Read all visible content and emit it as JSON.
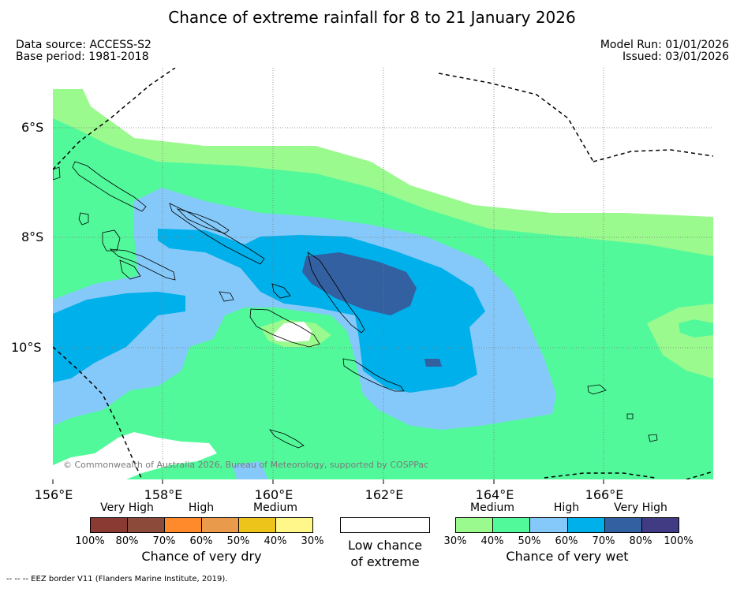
{
  "title": "Chance of extreme rainfall for 8 to 21 January 2026",
  "meta": {
    "data_source": "Data source: ACCESS-S2",
    "base_period": "Base period: 1981-2018",
    "model_run": "Model Run: 01/01/2026",
    "issued": "Issued: 03/01/2026"
  },
  "axes": {
    "lon_labels": [
      "156°E",
      "158°E",
      "160°E",
      "162°E",
      "164°E",
      "166°E"
    ],
    "lat_labels": [
      "6°S",
      "8°S",
      "10°S"
    ]
  },
  "copyright": "© Commonwealth of Australia 2026, Bureau of Meteorology, supported by COSPPac",
  "legend": {
    "dry": {
      "levels": [
        "Very High",
        "High",
        "Medium"
      ],
      "ticks": [
        "100%",
        "80%",
        "70%",
        "60%",
        "50%",
        "40%",
        "30%"
      ],
      "colors": [
        "#8b3a33",
        "#8b4a3a",
        "#ff8a2b",
        "#e99a4a",
        "#edc51a",
        "#fff78a"
      ],
      "caption": "Chance of very dry"
    },
    "low": {
      "caption_line1": "Low chance",
      "caption_line2": "of extreme"
    },
    "wet": {
      "levels": [
        "Medium",
        "High",
        "Very High"
      ],
      "ticks": [
        "30%",
        "40%",
        "50%",
        "60%",
        "70%",
        "80%",
        "100%"
      ],
      "colors": [
        "#9afa8e",
        "#52f99b",
        "#85c9fa",
        "#00b0ea",
        "#3360a0",
        "#403b83"
      ],
      "caption": "Chance of very wet"
    }
  },
  "footnote": "--  --  -- EEZ border V11 (Flanders Marine Institute, 2019)."
}
